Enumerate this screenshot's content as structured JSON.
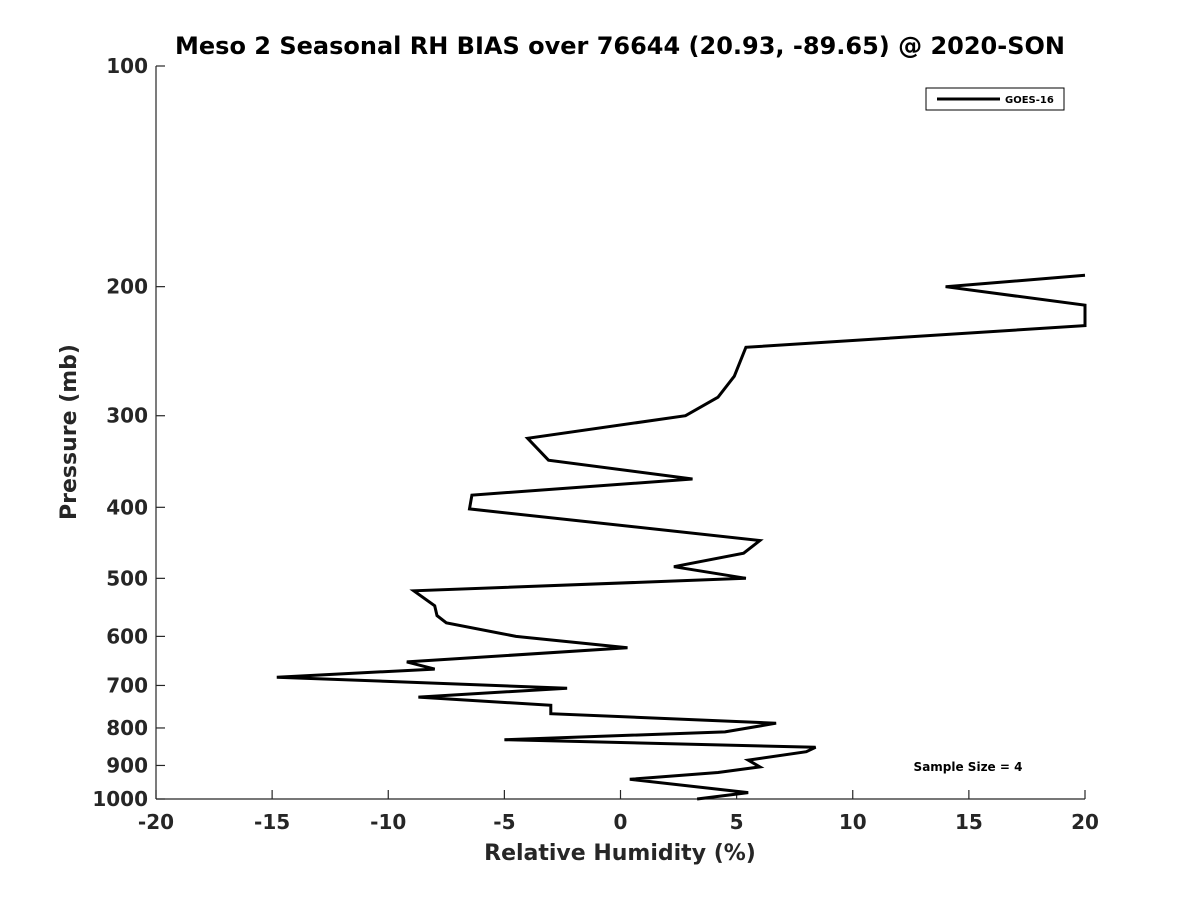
{
  "chart_data": {
    "type": "line",
    "title": "Meso 2 Seasonal RH BIAS over 76644 (20.93, -89.65) @ 2020-SON",
    "xlabel": "Relative Humidity (%)",
    "ylabel": "Pressure (mb)",
    "xlim": [
      -20,
      20
    ],
    "ylim": [
      100,
      1000
    ],
    "y_scale": "log",
    "y_reversed": true,
    "x_ticks": [
      -20,
      -15,
      -10,
      -5,
      0,
      5,
      10,
      15,
      20
    ],
    "x_tick_labels": [
      "-20",
      "-15",
      "-10",
      "-5",
      "0",
      "5",
      "10",
      "15",
      "20"
    ],
    "y_ticks": [
      100,
      200,
      300,
      400,
      500,
      600,
      700,
      800,
      900,
      1000
    ],
    "y_tick_labels": [
      "100",
      "200",
      "300",
      "400",
      "500",
      "600",
      "700",
      "800",
      "900",
      "1000"
    ],
    "grid": false,
    "legend_position": "top-right",
    "series": [
      {
        "name": "GOES-16",
        "color": "#000000",
        "points": [
          {
            "x": 20.0,
            "p": 193
          },
          {
            "x": 14.0,
            "p": 200
          },
          {
            "x": 20.0,
            "p": 212
          },
          {
            "x": 20.0,
            "p": 226
          },
          {
            "x": 5.4,
            "p": 242
          },
          {
            "x": 4.9,
            "p": 265
          },
          {
            "x": 4.2,
            "p": 283
          },
          {
            "x": 2.8,
            "p": 300
          },
          {
            "x": -4.0,
            "p": 322
          },
          {
            "x": -3.1,
            "p": 345
          },
          {
            "x": 3.1,
            "p": 366
          },
          {
            "x": -6.4,
            "p": 385
          },
          {
            "x": -6.5,
            "p": 402
          },
          {
            "x": 6.0,
            "p": 444
          },
          {
            "x": 5.3,
            "p": 462
          },
          {
            "x": 2.3,
            "p": 482
          },
          {
            "x": 5.4,
            "p": 500
          },
          {
            "x": -8.9,
            "p": 520
          },
          {
            "x": -8.0,
            "p": 545
          },
          {
            "x": -7.9,
            "p": 562
          },
          {
            "x": -7.5,
            "p": 575
          },
          {
            "x": -4.5,
            "p": 600
          },
          {
            "x": 0.3,
            "p": 622
          },
          {
            "x": -9.2,
            "p": 650
          },
          {
            "x": -8.0,
            "p": 665
          },
          {
            "x": -14.8,
            "p": 682
          },
          {
            "x": -2.3,
            "p": 706
          },
          {
            "x": -8.7,
            "p": 726
          },
          {
            "x": -3.0,
            "p": 745
          },
          {
            "x": -3.0,
            "p": 765
          },
          {
            "x": 6.7,
            "p": 788
          },
          {
            "x": 4.5,
            "p": 810
          },
          {
            "x": -5.0,
            "p": 830
          },
          {
            "x": 8.4,
            "p": 850
          },
          {
            "x": 8.0,
            "p": 862
          },
          {
            "x": 5.5,
            "p": 885
          },
          {
            "x": 6.0,
            "p": 904
          },
          {
            "x": 4.2,
            "p": 920
          },
          {
            "x": 0.4,
            "p": 940
          },
          {
            "x": 5.5,
            "p": 980
          },
          {
            "x": 3.3,
            "p": 1000
          }
        ]
      }
    ],
    "annotations": [
      "Sample Size = 4"
    ]
  }
}
